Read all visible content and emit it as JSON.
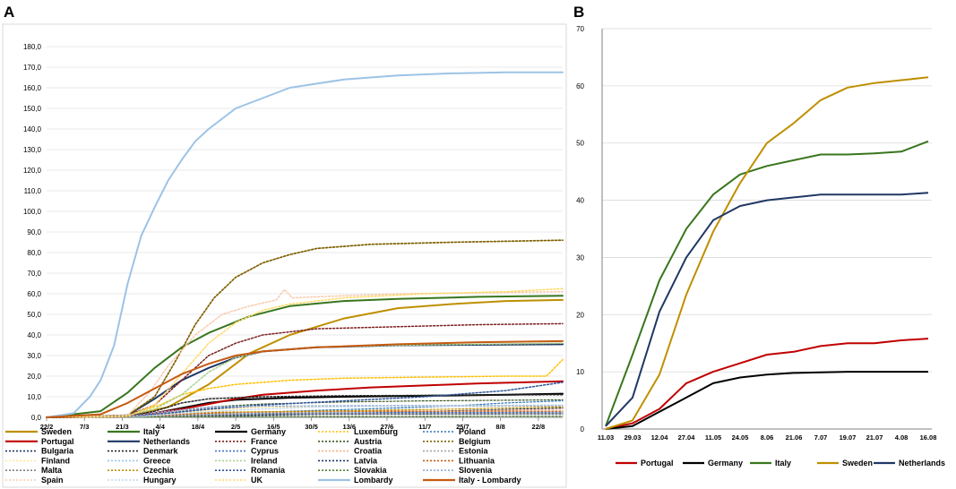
{
  "panels": {
    "a_label": "A",
    "b_label": "B"
  },
  "chart_data": [
    {
      "panel": "A",
      "type": "line",
      "title": "",
      "xlabel": "",
      "ylabel": "",
      "xlim": [
        0,
        191
      ],
      "ylim": [
        0,
        180
      ],
      "y_ticks": [
        "0,0",
        "10,0",
        "20,0",
        "30,0",
        "40,0",
        "50,0",
        "60,0",
        "70,0",
        "80,0",
        "90,0",
        "100,0",
        "110,0",
        "120,0",
        "130,0",
        "140,0",
        "150,0",
        "160,0",
        "170,0",
        "180,0"
      ],
      "x_ticks": [
        {
          "label": "22/2",
          "x": 0
        },
        {
          "label": "7/3",
          "x": 14
        },
        {
          "label": "21/3",
          "x": 28
        },
        {
          "label": "4/4",
          "x": 42
        },
        {
          "label": "18/4",
          "x": 56
        },
        {
          "label": "2/5",
          "x": 70
        },
        {
          "label": "16/5",
          "x": 84
        },
        {
          "label": "30/5",
          "x": 98
        },
        {
          "label": "13/6",
          "x": 112
        },
        {
          "label": "27/6",
          "x": 126
        },
        {
          "label": "11/7",
          "x": 140
        },
        {
          "label": "25/7",
          "x": 154
        },
        {
          "label": "8/8",
          "x": 168
        },
        {
          "label": "22/8",
          "x": 182
        }
      ],
      "series": [
        {
          "name": "Sweden",
          "color": "#BF8F00",
          "dash": "solid",
          "width": 2,
          "x": [
            0,
            30,
            45,
            60,
            75,
            90,
            110,
            130,
            150,
            170,
            191
          ],
          "y": [
            0,
            0.5,
            5,
            16,
            31,
            40,
            48,
            53,
            55,
            56.5,
            57
          ]
        },
        {
          "name": "Italy",
          "color": "#38761D",
          "dash": "solid",
          "width": 2,
          "x": [
            0,
            20,
            30,
            40,
            50,
            60,
            75,
            90,
            110,
            130,
            160,
            191
          ],
          "y": [
            0,
            3,
            12,
            24,
            34,
            41,
            49,
            54,
            56.5,
            57.5,
            58.5,
            59
          ]
        },
        {
          "name": "Germany",
          "color": "#000000",
          "dash": "solid",
          "width": 2,
          "x": [
            0,
            30,
            40,
            50,
            60,
            70,
            90,
            110,
            140,
            170,
            191
          ],
          "y": [
            0,
            0.5,
            2,
            4.5,
            7,
            8.5,
            9.5,
            10,
            10.5,
            11,
            11.5
          ]
        },
        {
          "name": "Luxemburg",
          "color": "#FFC000",
          "dash": "dot",
          "width": 1.5,
          "x": [
            0,
            30,
            42,
            50,
            60,
            70,
            90,
            110,
            140,
            170,
            185,
            191
          ],
          "y": [
            0,
            1,
            6,
            11,
            14,
            16,
            18,
            19,
            19.5,
            20,
            20,
            28
          ]
        },
        {
          "name": "Poland",
          "color": "#2E75B6",
          "dash": "dot",
          "width": 1.2,
          "x": [
            0,
            35,
            50,
            70,
            90,
            110,
            130,
            150,
            170,
            191
          ],
          "y": [
            0,
            0.2,
            1,
            2,
            3,
            3.8,
            4.5,
            5.5,
            7,
            8
          ]
        },
        {
          "name": "Portugal",
          "color": "#C00000",
          "dash": "solid",
          "width": 2,
          "x": [
            0,
            30,
            40,
            50,
            60,
            70,
            80,
            100,
            120,
            140,
            160,
            191
          ],
          "y": [
            0,
            0.5,
            2,
            4,
            6.5,
            9,
            11,
            13,
            14.5,
            15.5,
            16.5,
            17.5
          ]
        },
        {
          "name": "Netherlands",
          "color": "#1F3864",
          "dash": "solid",
          "width": 2,
          "x": [
            0,
            30,
            40,
            50,
            60,
            70,
            80,
            100,
            130,
            191
          ],
          "y": [
            0,
            1,
            9,
            18,
            24,
            29,
            32,
            34,
            35,
            35.5
          ]
        },
        {
          "name": "France",
          "color": "#7B1F1F",
          "dash": "dot",
          "width": 1.5,
          "x": [
            0,
            30,
            40,
            50,
            60,
            70,
            80,
            100,
            130,
            160,
            191
          ],
          "y": [
            0,
            1,
            6,
            18,
            30,
            36,
            40,
            43,
            44,
            45,
            45.5
          ]
        },
        {
          "name": "Austria",
          "color": "#385723",
          "dash": "dot",
          "width": 1.2,
          "x": [
            0,
            30,
            45,
            60,
            80,
            110,
            140,
            191
          ],
          "y": [
            0,
            0.3,
            2,
            5,
            6.5,
            7.5,
            8,
            8.5
          ]
        },
        {
          "name": "Belgium",
          "color": "#7F6000",
          "dash": "dot",
          "width": 1.7,
          "x": [
            0,
            30,
            40,
            48,
            55,
            62,
            70,
            80,
            90,
            100,
            120,
            150,
            191
          ],
          "y": [
            0,
            1,
            10,
            28,
            45,
            58,
            68,
            75,
            79,
            82,
            84,
            85,
            86
          ]
        },
        {
          "name": "Bulgaria",
          "color": "#203864",
          "dash": "dot",
          "width": 1.2,
          "x": [
            0,
            40,
            70,
            100,
            130,
            160,
            191
          ],
          "y": [
            0,
            0.2,
            0.8,
            1.5,
            2.5,
            3.5,
            4.5
          ]
        },
        {
          "name": "Denmark",
          "color": "#262626",
          "dash": "dot",
          "width": 1.5,
          "x": [
            0,
            30,
            40,
            50,
            60,
            80,
            110,
            191
          ],
          "y": [
            0,
            0.5,
            3,
            7,
            9,
            10,
            10.5,
            11
          ]
        },
        {
          "name": "Cyprus",
          "color": "#4472C4",
          "dash": "dot",
          "width": 1.2,
          "x": [
            0,
            35,
            50,
            70,
            100,
            191
          ],
          "y": [
            0,
            0.5,
            1.5,
            2,
            2.2,
            2.5
          ]
        },
        {
          "name": "Croatia",
          "color": "#F4B183",
          "dash": "dot",
          "width": 1.2,
          "x": [
            0,
            40,
            60,
            80,
            110,
            150,
            191
          ],
          "y": [
            0,
            0.5,
            2,
            2.5,
            2.8,
            3,
            4
          ]
        },
        {
          "name": "Estonia",
          "color": "#A5A5A5",
          "dash": "dot",
          "width": 1.2,
          "x": [
            0,
            30,
            45,
            60,
            80,
            110,
            191
          ],
          "y": [
            0,
            0.5,
            2.5,
            4.5,
            5,
            5.2,
            5.5
          ]
        },
        {
          "name": "Finland",
          "color": "#FFE699",
          "dash": "dot",
          "width": 1.2,
          "x": [
            0,
            30,
            45,
            60,
            80,
            110,
            191
          ],
          "y": [
            0,
            0.3,
            1.5,
            3.5,
            5,
            5.5,
            6
          ]
        },
        {
          "name": "Greece",
          "color": "#9DC3E6",
          "dash": "dot",
          "width": 1.2,
          "x": [
            0,
            30,
            45,
            60,
            90,
            191
          ],
          "y": [
            0,
            0.3,
            1,
            1.5,
            1.7,
            2
          ]
        },
        {
          "name": "Ireland",
          "color": "#A9D18E",
          "dash": "dot",
          "width": 1.5,
          "x": [
            0,
            30,
            40,
            50,
            60,
            70,
            80,
            100,
            130,
            191
          ],
          "y": [
            0,
            1,
            4,
            11,
            22,
            29,
            32,
            34,
            35,
            36
          ]
        },
        {
          "name": "Latvia",
          "color": "#1F3864",
          "dash": "dot",
          "width": 1.2,
          "x": [
            0,
            40,
            60,
            90,
            191
          ],
          "y": [
            0,
            0.5,
            1,
            1.5,
            1.7
          ]
        },
        {
          "name": "Lithuania",
          "color": "#C55A11",
          "dash": "dot",
          "width": 1.2,
          "x": [
            0,
            35,
            50,
            70,
            100,
            191
          ],
          "y": [
            0,
            0.5,
            1.5,
            2.5,
            3,
            3
          ]
        },
        {
          "name": "Malta",
          "color": "#808080",
          "dash": "dot",
          "width": 1.2,
          "x": [
            0,
            40,
            60,
            90,
            191
          ],
          "y": [
            0,
            0.5,
            1.2,
            1.8,
            2
          ]
        },
        {
          "name": "Czechia",
          "color": "#BF9000",
          "dash": "dot",
          "width": 1.2,
          "x": [
            0,
            30,
            45,
            60,
            100,
            150,
            191
          ],
          "y": [
            0,
            0.3,
            1.5,
            2.5,
            3,
            4,
            5
          ]
        },
        {
          "name": "Romania",
          "color": "#2F5597",
          "dash": "dot",
          "width": 1.5,
          "x": [
            0,
            30,
            45,
            60,
            80,
            110,
            140,
            170,
            191
          ],
          "y": [
            0,
            0.5,
            2,
            4,
            6,
            8,
            10,
            13,
            17
          ]
        },
        {
          "name": "Slovakia",
          "color": "#548235",
          "dash": "dot",
          "width": 1.2,
          "x": [
            0,
            40,
            60,
            100,
            191
          ],
          "y": [
            0,
            0.2,
            0.4,
            0.5,
            0.6
          ]
        },
        {
          "name": "Slovenia",
          "color": "#8FAADC",
          "dash": "dot",
          "width": 1.2,
          "x": [
            0,
            30,
            45,
            60,
            80,
            110,
            191
          ],
          "y": [
            0,
            0.5,
            3,
            5,
            5.5,
            5.7,
            5.9
          ]
        },
        {
          "name": "Spain",
          "color": "#F8CBAD",
          "dash": "dot",
          "width": 1.5,
          "x": [
            0,
            30,
            38,
            45,
            55,
            65,
            75,
            85,
            88,
            91,
            100,
            130,
            160,
            191
          ],
          "y": [
            0,
            1,
            12,
            25,
            40,
            50,
            54,
            57,
            62,
            58,
            58.5,
            60,
            60.5,
            61
          ]
        },
        {
          "name": "Hungary",
          "color": "#BDD7EE",
          "dash": "dot",
          "width": 1.2,
          "x": [
            0,
            35,
            50,
            70,
            100,
            191
          ],
          "y": [
            0,
            0.5,
            2,
            3.5,
            5,
            6
          ]
        },
        {
          "name": "UK",
          "color": "#FFD966",
          "dash": "dot",
          "width": 1.5,
          "x": [
            0,
            30,
            40,
            50,
            60,
            70,
            80,
            90,
            110,
            140,
            170,
            191
          ],
          "y": [
            0,
            0.5,
            6,
            21,
            36,
            46,
            52,
            55,
            58,
            60,
            61,
            62.5
          ]
        },
        {
          "name": "Lombardy",
          "color": "#9DC3E6",
          "dash": "solid",
          "width": 2,
          "x": [
            0,
            10,
            16,
            20,
            25,
            30,
            35,
            40,
            45,
            50,
            55,
            60,
            65,
            70,
            80,
            90,
            100,
            110,
            120,
            130,
            150,
            170,
            191
          ],
          "y": [
            0,
            2,
            10,
            18,
            35,
            65,
            88,
            102,
            115,
            125,
            134,
            140,
            145,
            150,
            155,
            160,
            162,
            164,
            165,
            166,
            167,
            167.5,
            167.5
          ]
        },
        {
          "name": "Italy - Lombardy",
          "color": "#C55A11",
          "dash": "solid",
          "width": 2,
          "x": [
            0,
            20,
            30,
            40,
            50,
            60,
            70,
            80,
            100,
            130,
            160,
            191
          ],
          "y": [
            0,
            1.5,
            7,
            14,
            21,
            26,
            30,
            32,
            34,
            35.5,
            36.5,
            37
          ]
        }
      ]
    },
    {
      "panel": "B",
      "type": "line",
      "title": "",
      "xlabel": "",
      "ylabel": "",
      "categories": [
        "11.03",
        "29.03",
        "12.04",
        "27.04",
        "11.05",
        "24.05",
        "8.06",
        "21.06",
        "7.07",
        "19.07",
        "21.07",
        "4.08",
        "16.08"
      ],
      "ylim": [
        0,
        70
      ],
      "y_ticks": [
        "0",
        "10",
        "20",
        "30",
        "40",
        "50",
        "60",
        "70"
      ],
      "series": [
        {
          "name": "Portugal",
          "color": "#C00000",
          "values": [
            0,
            1,
            3.5,
            8,
            10,
            11.5,
            13,
            13.5,
            14.5,
            15,
            15,
            15.5,
            15.8
          ]
        },
        {
          "name": "Germany",
          "color": "#000000",
          "values": [
            0,
            0.5,
            3,
            5.5,
            8,
            9,
            9.5,
            9.8,
            9.9,
            10,
            10,
            10,
            10
          ]
        },
        {
          "name": "Italy",
          "color": "#38761D",
          "values": [
            0.5,
            13,
            26,
            35,
            41,
            44.5,
            46,
            47,
            48,
            48,
            48.2,
            48.5,
            50.3
          ]
        },
        {
          "name": "Sweden",
          "color": "#BF8F00",
          "values": [
            0,
            1.5,
            9.5,
            23.5,
            34.5,
            43,
            50,
            53.5,
            57.5,
            59.7,
            60.5,
            61,
            61.5
          ]
        },
        {
          "name": "Netherlands",
          "color": "#1F3864",
          "values": [
            0.5,
            5.5,
            20.5,
            30,
            36.5,
            39,
            40,
            40.5,
            41,
            41,
            41,
            41,
            41.3
          ]
        }
      ]
    }
  ]
}
